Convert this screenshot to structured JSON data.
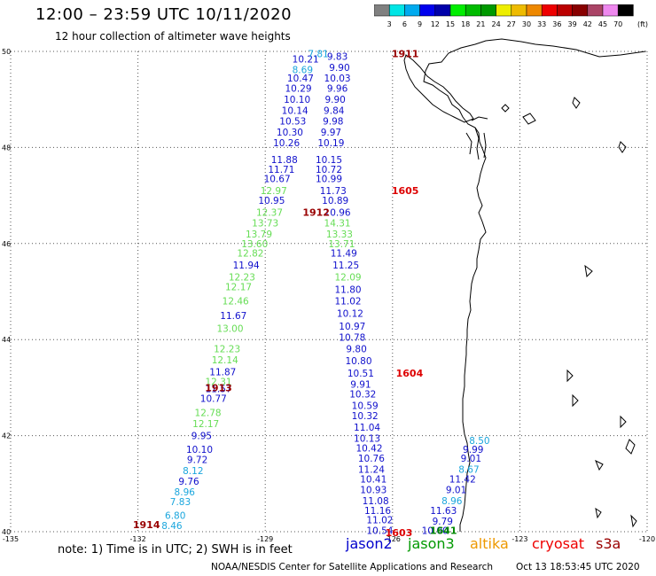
{
  "header": {
    "title": "12:00 – 23:59 UTC 10/11/2020",
    "subtitle": "12 hour collection of altimeter wave heights"
  },
  "colorbar": {
    "unit_label": "(ft)",
    "ticks": [
      "3",
      "6",
      "9",
      "12",
      "15",
      "18",
      "21",
      "24",
      "27",
      "30",
      "33",
      "36",
      "39",
      "42",
      "45",
      "70"
    ],
    "colors": [
      "#808080",
      "#00e5e5",
      "#00aaee",
      "#0000ee",
      "#0000aa",
      "#00ee00",
      "#00bb00",
      "#009900",
      "#eeee00",
      "#eebb00",
      "#ee8800",
      "#ee0000",
      "#bb0000",
      "#880000",
      "#aa4466",
      "#ee88ee",
      "#000000"
    ]
  },
  "axes": {
    "lat_labels": [
      "50",
      "48",
      "46",
      "44",
      "42",
      "40"
    ],
    "lon_labels": [
      "-135",
      "-132",
      "-129",
      "-126",
      "-123",
      "-120"
    ]
  },
  "footer": {
    "notes": "note: 1) Time is in UTC; 2) SWH is in feet",
    "credit": "NOAA/NESDIS Center for Satellite Applications and Research",
    "timestamp": "Oct 13 18:53:45 UTC 2020"
  },
  "missions": [
    {
      "name": "jason2",
      "color": "#0000cc"
    },
    {
      "name": "jason3",
      "color": "#009900"
    },
    {
      "name": "altika",
      "color": "#ee9900"
    },
    {
      "name": "cryosat",
      "color": "#ee0000"
    },
    {
      "name": "s3a",
      "color": "#990000"
    }
  ],
  "pass_labels": [
    {
      "text": "1911",
      "color": "#990000",
      "lon": -125.7,
      "lat": 49.95
    },
    {
      "text": "1605",
      "color": "#dd0000",
      "lon": -125.7,
      "lat": 47.1
    },
    {
      "text": "1912",
      "color": "#990000",
      "lon": -127.8,
      "lat": 46.65
    },
    {
      "text": "1604",
      "color": "#dd0000",
      "lon": -125.6,
      "lat": 43.3
    },
    {
      "text": "1913",
      "color": "#990000",
      "lon": -130.1,
      "lat": 43.0
    },
    {
      "text": "1914",
      "color": "#990000",
      "lon": -131.8,
      "lat": 40.15
    },
    {
      "text": "1603",
      "color": "#dd0000",
      "lon": -125.85,
      "lat": 39.98
    },
    {
      "text": "1641",
      "color": "#008800",
      "lon": -124.8,
      "lat": 40.03
    }
  ],
  "tracks": [
    {
      "name": "west-ascending",
      "points": [
        {
          "lon": -131.2,
          "lat": 40.13,
          "v": "8.46"
        },
        {
          "lon": -131.12,
          "lat": 40.34,
          "v": "6.80"
        },
        {
          "lon": -131.0,
          "lat": 40.63,
          "v": "7.83"
        },
        {
          "lon": -130.9,
          "lat": 40.83,
          "v": "8.96"
        },
        {
          "lon": -130.8,
          "lat": 41.05,
          "v": "9.76"
        },
        {
          "lon": -130.7,
          "lat": 41.27,
          "v": "8.12"
        },
        {
          "lon": -130.6,
          "lat": 41.5,
          "v": "9.72"
        },
        {
          "lon": -130.55,
          "lat": 41.72,
          "v": "10.10"
        },
        {
          "lon": -130.5,
          "lat": 42.0,
          "v": "9.95"
        },
        {
          "lon": -130.4,
          "lat": 42.25,
          "v": "12.17"
        },
        {
          "lon": -130.35,
          "lat": 42.48,
          "v": "12.78"
        },
        {
          "lon": -130.22,
          "lat": 42.78,
          "v": "10.77"
        },
        {
          "lon": -130.1,
          "lat": 42.98,
          "v": "11.57"
        },
        {
          "lon": -130.1,
          "lat": 43.13,
          "v": "12.31"
        },
        {
          "lon": -130.0,
          "lat": 43.33,
          "v": "11.87"
        },
        {
          "lon": -129.95,
          "lat": 43.58,
          "v": "12.14"
        },
        {
          "lon": -129.9,
          "lat": 43.81,
          "v": "12.23"
        },
        {
          "lon": -129.83,
          "lat": 44.23,
          "v": "13.00"
        },
        {
          "lon": -129.75,
          "lat": 44.5,
          "v": "11.67"
        },
        {
          "lon": -129.7,
          "lat": 44.81,
          "v": "12.46"
        },
        {
          "lon": -129.63,
          "lat": 45.1,
          "v": "12.17"
        },
        {
          "lon": -129.55,
          "lat": 45.3,
          "v": "12.23"
        },
        {
          "lon": -129.45,
          "lat": 45.55,
          "v": "11.94"
        },
        {
          "lon": -129.35,
          "lat": 45.8,
          "v": "12.82"
        },
        {
          "lon": -129.25,
          "lat": 46.0,
          "v": "13.60"
        },
        {
          "lon": -129.15,
          "lat": 46.2,
          "v": "13.79"
        },
        {
          "lon": -129.0,
          "lat": 46.43,
          "v": "13.73"
        },
        {
          "lon": -128.9,
          "lat": 46.65,
          "v": "12.37"
        },
        {
          "lon": -128.85,
          "lat": 46.9,
          "v": "10.95"
        },
        {
          "lon": -128.8,
          "lat": 47.1,
          "v": "12.97"
        },
        {
          "lon": -128.72,
          "lat": 47.35,
          "v": "10.67"
        },
        {
          "lon": -128.62,
          "lat": 47.55,
          "v": "11.71"
        },
        {
          "lon": -128.55,
          "lat": 47.75,
          "v": "11.88"
        },
        {
          "lon": -128.5,
          "lat": 48.1,
          "v": "10.26"
        },
        {
          "lon": -128.42,
          "lat": 48.32,
          "v": "10.30"
        },
        {
          "lon": -128.35,
          "lat": 48.55,
          "v": "10.53"
        },
        {
          "lon": -128.3,
          "lat": 48.77,
          "v": "10.14"
        },
        {
          "lon": -128.25,
          "lat": 49.0,
          "v": "10.10"
        },
        {
          "lon": -128.22,
          "lat": 49.23,
          "v": "10.29"
        },
        {
          "lon": -128.17,
          "lat": 49.45,
          "v": "10.47"
        },
        {
          "lon": -128.12,
          "lat": 49.62,
          "v": "8.69"
        },
        {
          "lon": -128.05,
          "lat": 49.84,
          "v": "10.21"
        },
        {
          "lon": -127.75,
          "lat": 49.95,
          "v": "7.81"
        }
      ]
    },
    {
      "name": "east-descending",
      "points": [
        {
          "lon": -127.3,
          "lat": 49.9,
          "v": "9.83"
        },
        {
          "lon": -127.25,
          "lat": 49.67,
          "v": "9.90"
        },
        {
          "lon": -127.3,
          "lat": 49.45,
          "v": "10.03"
        },
        {
          "lon": -127.3,
          "lat": 49.23,
          "v": "9.96"
        },
        {
          "lon": -127.35,
          "lat": 49.0,
          "v": "9.90"
        },
        {
          "lon": -127.38,
          "lat": 48.77,
          "v": "9.84"
        },
        {
          "lon": -127.4,
          "lat": 48.55,
          "v": "9.98"
        },
        {
          "lon": -127.45,
          "lat": 48.32,
          "v": "9.97"
        },
        {
          "lon": -127.45,
          "lat": 48.1,
          "v": "10.19"
        },
        {
          "lon": -127.5,
          "lat": 47.75,
          "v": "10.15"
        },
        {
          "lon": -127.5,
          "lat": 47.55,
          "v": "10.72"
        },
        {
          "lon": -127.5,
          "lat": 47.35,
          "v": "10.99"
        },
        {
          "lon": -127.4,
          "lat": 47.1,
          "v": "11.73"
        },
        {
          "lon": -127.35,
          "lat": 46.9,
          "v": "10.89"
        },
        {
          "lon": -127.3,
          "lat": 46.65,
          "v": "10.96"
        },
        {
          "lon": -127.3,
          "lat": 46.43,
          "v": "14.31"
        },
        {
          "lon": -127.25,
          "lat": 46.2,
          "v": "13.33"
        },
        {
          "lon": -127.2,
          "lat": 46.0,
          "v": "13.71"
        },
        {
          "lon": -127.15,
          "lat": 45.8,
          "v": "11.49"
        },
        {
          "lon": -127.1,
          "lat": 45.55,
          "v": "11.25"
        },
        {
          "lon": -127.05,
          "lat": 45.3,
          "v": "12.09"
        },
        {
          "lon": -127.05,
          "lat": 45.05,
          "v": "11.80"
        },
        {
          "lon": -127.05,
          "lat": 44.81,
          "v": "11.02"
        },
        {
          "lon": -127.0,
          "lat": 44.55,
          "v": "10.12"
        },
        {
          "lon": -126.95,
          "lat": 44.28,
          "v": "10.97"
        },
        {
          "lon": -126.95,
          "lat": 44.05,
          "v": "10.78"
        },
        {
          "lon": -126.85,
          "lat": 43.81,
          "v": "9.80"
        },
        {
          "lon": -126.8,
          "lat": 43.56,
          "v": "10.80"
        },
        {
          "lon": -126.75,
          "lat": 43.3,
          "v": "10.51"
        },
        {
          "lon": -126.75,
          "lat": 43.07,
          "v": "9.91"
        },
        {
          "lon": -126.7,
          "lat": 42.87,
          "v": "10.32"
        },
        {
          "lon": -126.65,
          "lat": 42.63,
          "v": "10.59"
        },
        {
          "lon": -126.65,
          "lat": 42.42,
          "v": "10.32"
        },
        {
          "lon": -126.6,
          "lat": 42.18,
          "v": "11.04"
        },
        {
          "lon": -126.6,
          "lat": 41.95,
          "v": "10.13"
        },
        {
          "lon": -126.55,
          "lat": 41.74,
          "v": "10.42"
        },
        {
          "lon": -126.5,
          "lat": 41.53,
          "v": "10.76"
        },
        {
          "lon": -126.5,
          "lat": 41.3,
          "v": "11.24"
        },
        {
          "lon": -126.45,
          "lat": 41.1,
          "v": "10.41"
        },
        {
          "lon": -126.45,
          "lat": 40.88,
          "v": "10.93"
        },
        {
          "lon": -126.4,
          "lat": 40.65,
          "v": "11.08"
        },
        {
          "lon": -126.35,
          "lat": 40.44,
          "v": "11.16"
        },
        {
          "lon": -126.3,
          "lat": 40.25,
          "v": "11.02"
        },
        {
          "lon": -126.3,
          "lat": 40.03,
          "v": "10.54"
        }
      ]
    },
    {
      "name": "coastal-ascending",
      "points": [
        {
          "lon": -125.0,
          "lat": 40.03,
          "v": "10.00"
        },
        {
          "lon": -124.82,
          "lat": 40.22,
          "v": "9.79"
        },
        {
          "lon": -124.8,
          "lat": 40.44,
          "v": "11.63"
        },
        {
          "lon": -124.6,
          "lat": 40.65,
          "v": "8.96"
        },
        {
          "lon": -124.5,
          "lat": 40.88,
          "v": "9.01"
        },
        {
          "lon": -124.35,
          "lat": 41.1,
          "v": "11.42"
        },
        {
          "lon": -124.2,
          "lat": 41.3,
          "v": "8.67"
        },
        {
          "lon": -124.15,
          "lat": 41.53,
          "v": "9.01"
        },
        {
          "lon": -124.1,
          "lat": 41.72,
          "v": "9.99"
        },
        {
          "lon": -123.95,
          "lat": 41.9,
          "v": "8.50"
        }
      ]
    }
  ]
}
